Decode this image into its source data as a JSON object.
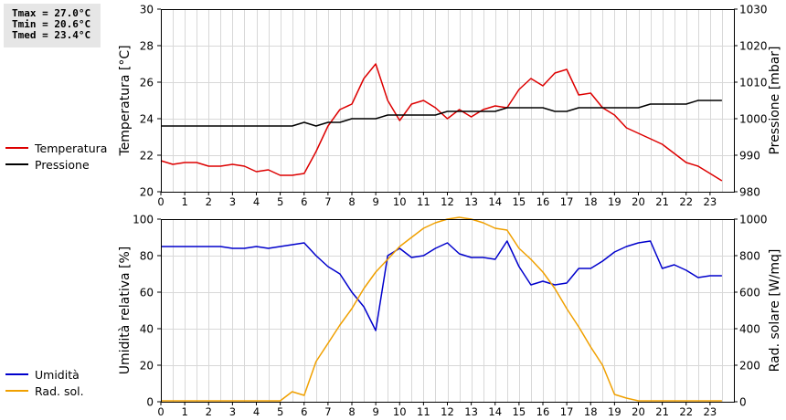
{
  "stats": {
    "tmax": "Tmax = 27.0°C",
    "tmin": "Tmin = 20.6°C",
    "tmed": "Tmed = 23.4°C"
  },
  "legend_top": [
    {
      "label": "Temperatura",
      "color": "#dd0000"
    },
    {
      "label": "Pressione",
      "color": "#000000"
    }
  ],
  "legend_bottom": [
    {
      "label": "Umidità",
      "color": "#0000cc"
    },
    {
      "label": "Rad. sol.",
      "color": "#f0a000"
    }
  ],
  "chart_data": [
    {
      "type": "line",
      "x_ticks": [
        0,
        1,
        2,
        3,
        4,
        5,
        6,
        7,
        8,
        9,
        10,
        11,
        12,
        13,
        14,
        15,
        16,
        17,
        18,
        19,
        20,
        21,
        22,
        23
      ],
      "xlim": [
        0,
        24
      ],
      "ylabel": "Temperatura [°C]",
      "ylim": [
        20,
        30
      ],
      "y_ticks": [
        20,
        22,
        24,
        26,
        28,
        30
      ],
      "y2label": "Pressione [mbar]",
      "y2lim": [
        980,
        1030
      ],
      "y2_ticks": [
        980,
        990,
        1000,
        1010,
        1020,
        1030
      ],
      "grid": true,
      "series": [
        {
          "name": "Temperatura",
          "axis": "left",
          "color": "#dd0000",
          "x": [
            0,
            0.5,
            1,
            1.5,
            2,
            2.5,
            3,
            3.5,
            4,
            4.5,
            5,
            5.5,
            6,
            6.5,
            7,
            7.5,
            8,
            8.5,
            9,
            9.5,
            10,
            10.5,
            11,
            11.5,
            12,
            12.5,
            13,
            13.5,
            14,
            14.5,
            15,
            15.5,
            16,
            16.5,
            17,
            17.5,
            18,
            18.5,
            19,
            19.5,
            20,
            20.5,
            21,
            21.5,
            22,
            22.5,
            23,
            23.5
          ],
          "values": [
            21.7,
            21.5,
            21.6,
            21.6,
            21.4,
            21.4,
            21.5,
            21.4,
            21.1,
            21.2,
            20.9,
            20.9,
            21.0,
            22.2,
            23.6,
            24.5,
            24.8,
            26.2,
            27.0,
            25.0,
            23.9,
            24.8,
            25.0,
            24.6,
            24.0,
            24.5,
            24.1,
            24.5,
            24.7,
            24.6,
            25.6,
            26.2,
            25.8,
            26.5,
            26.7,
            25.3,
            25.4,
            24.6,
            24.2,
            23.5,
            23.2,
            22.9,
            22.6,
            22.1,
            21.6,
            21.4,
            21.0,
            20.6
          ]
        },
        {
          "name": "Pressione",
          "axis": "right",
          "color": "#000000",
          "x": [
            0,
            0.5,
            1,
            1.5,
            2,
            2.5,
            3,
            3.5,
            4,
            4.5,
            5,
            5.5,
            6,
            6.5,
            7,
            7.5,
            8,
            8.5,
            9,
            9.5,
            10,
            10.5,
            11,
            11.5,
            12,
            12.5,
            13,
            13.5,
            14,
            14.5,
            15,
            15.5,
            16,
            16.5,
            17,
            17.5,
            18,
            18.5,
            19,
            19.5,
            20,
            20.5,
            21,
            21.5,
            22,
            22.5,
            23,
            23.5
          ],
          "values": [
            998,
            998,
            998,
            998,
            998,
            998,
            998,
            998,
            998,
            998,
            998,
            998,
            999,
            998,
            999,
            999,
            1000,
            1000,
            1000,
            1001,
            1001,
            1001,
            1001,
            1001,
            1002,
            1002,
            1002,
            1002,
            1002,
            1003,
            1003,
            1003,
            1003,
            1002,
            1002,
            1003,
            1003,
            1003,
            1003,
            1003,
            1003,
            1004,
            1004,
            1004,
            1004,
            1005,
            1005,
            1005
          ]
        }
      ]
    },
    {
      "type": "line",
      "x_ticks": [
        0,
        1,
        2,
        3,
        4,
        5,
        6,
        7,
        8,
        9,
        10,
        11,
        12,
        13,
        14,
        15,
        16,
        17,
        18,
        19,
        20,
        21,
        22,
        23
      ],
      "xlim": [
        0,
        24
      ],
      "ylabel": "Umidità relativa [%]",
      "ylim": [
        0,
        100
      ],
      "y_ticks": [
        0,
        20,
        40,
        60,
        80,
        100
      ],
      "y2label": "Rad. solare [W/mq]",
      "y2lim": [
        0,
        1000
      ],
      "y2_ticks": [
        0,
        200,
        400,
        600,
        800,
        1000
      ],
      "grid": true,
      "series": [
        {
          "name": "Umidità",
          "axis": "left",
          "color": "#0000cc",
          "x": [
            0,
            0.5,
            1,
            1.5,
            2,
            2.5,
            3,
            3.5,
            4,
            4.5,
            5,
            5.5,
            6,
            6.5,
            7,
            7.5,
            8,
            8.5,
            9,
            9.5,
            10,
            10.5,
            11,
            11.5,
            12,
            12.5,
            13,
            13.5,
            14,
            14.5,
            15,
            15.5,
            16,
            16.5,
            17,
            17.5,
            18,
            18.5,
            19,
            19.5,
            20,
            20.5,
            21,
            21.5,
            22,
            22.5,
            23,
            23.5
          ],
          "values": [
            85,
            85,
            85,
            85,
            85,
            85,
            84,
            84,
            85,
            84,
            85,
            86,
            87,
            80,
            74,
            70,
            60,
            52,
            39,
            80,
            84,
            79,
            80,
            84,
            87,
            81,
            79,
            79,
            78,
            88,
            74,
            64,
            66,
            64,
            65,
            73,
            73,
            77,
            82,
            85,
            87,
            88,
            73,
            75,
            72,
            68,
            69,
            69
          ]
        },
        {
          "name": "Rad. sol.",
          "axis": "right",
          "color": "#f0a000",
          "x": [
            0,
            0.5,
            1,
            1.5,
            2,
            2.5,
            3,
            3.5,
            4,
            4.5,
            5,
            5.5,
            6,
            6.5,
            7,
            7.5,
            8,
            8.5,
            9,
            9.5,
            10,
            10.5,
            11,
            11.5,
            12,
            12.5,
            13,
            13.5,
            14,
            14.5,
            15,
            15.5,
            16,
            16.5,
            17,
            17.5,
            18,
            18.5,
            19,
            19.5,
            20,
            20.5,
            21,
            21.5,
            22,
            22.5,
            23,
            23.5
          ],
          "values": [
            5,
            5,
            5,
            5,
            5,
            5,
            5,
            5,
            5,
            5,
            5,
            55,
            35,
            220,
            320,
            420,
            510,
            620,
            710,
            780,
            850,
            900,
            950,
            980,
            1000,
            1010,
            1000,
            980,
            950,
            940,
            840,
            780,
            710,
            620,
            510,
            410,
            300,
            200,
            40,
            20,
            5,
            5,
            5,
            5,
            5,
            5,
            5,
            5
          ]
        }
      ]
    }
  ]
}
